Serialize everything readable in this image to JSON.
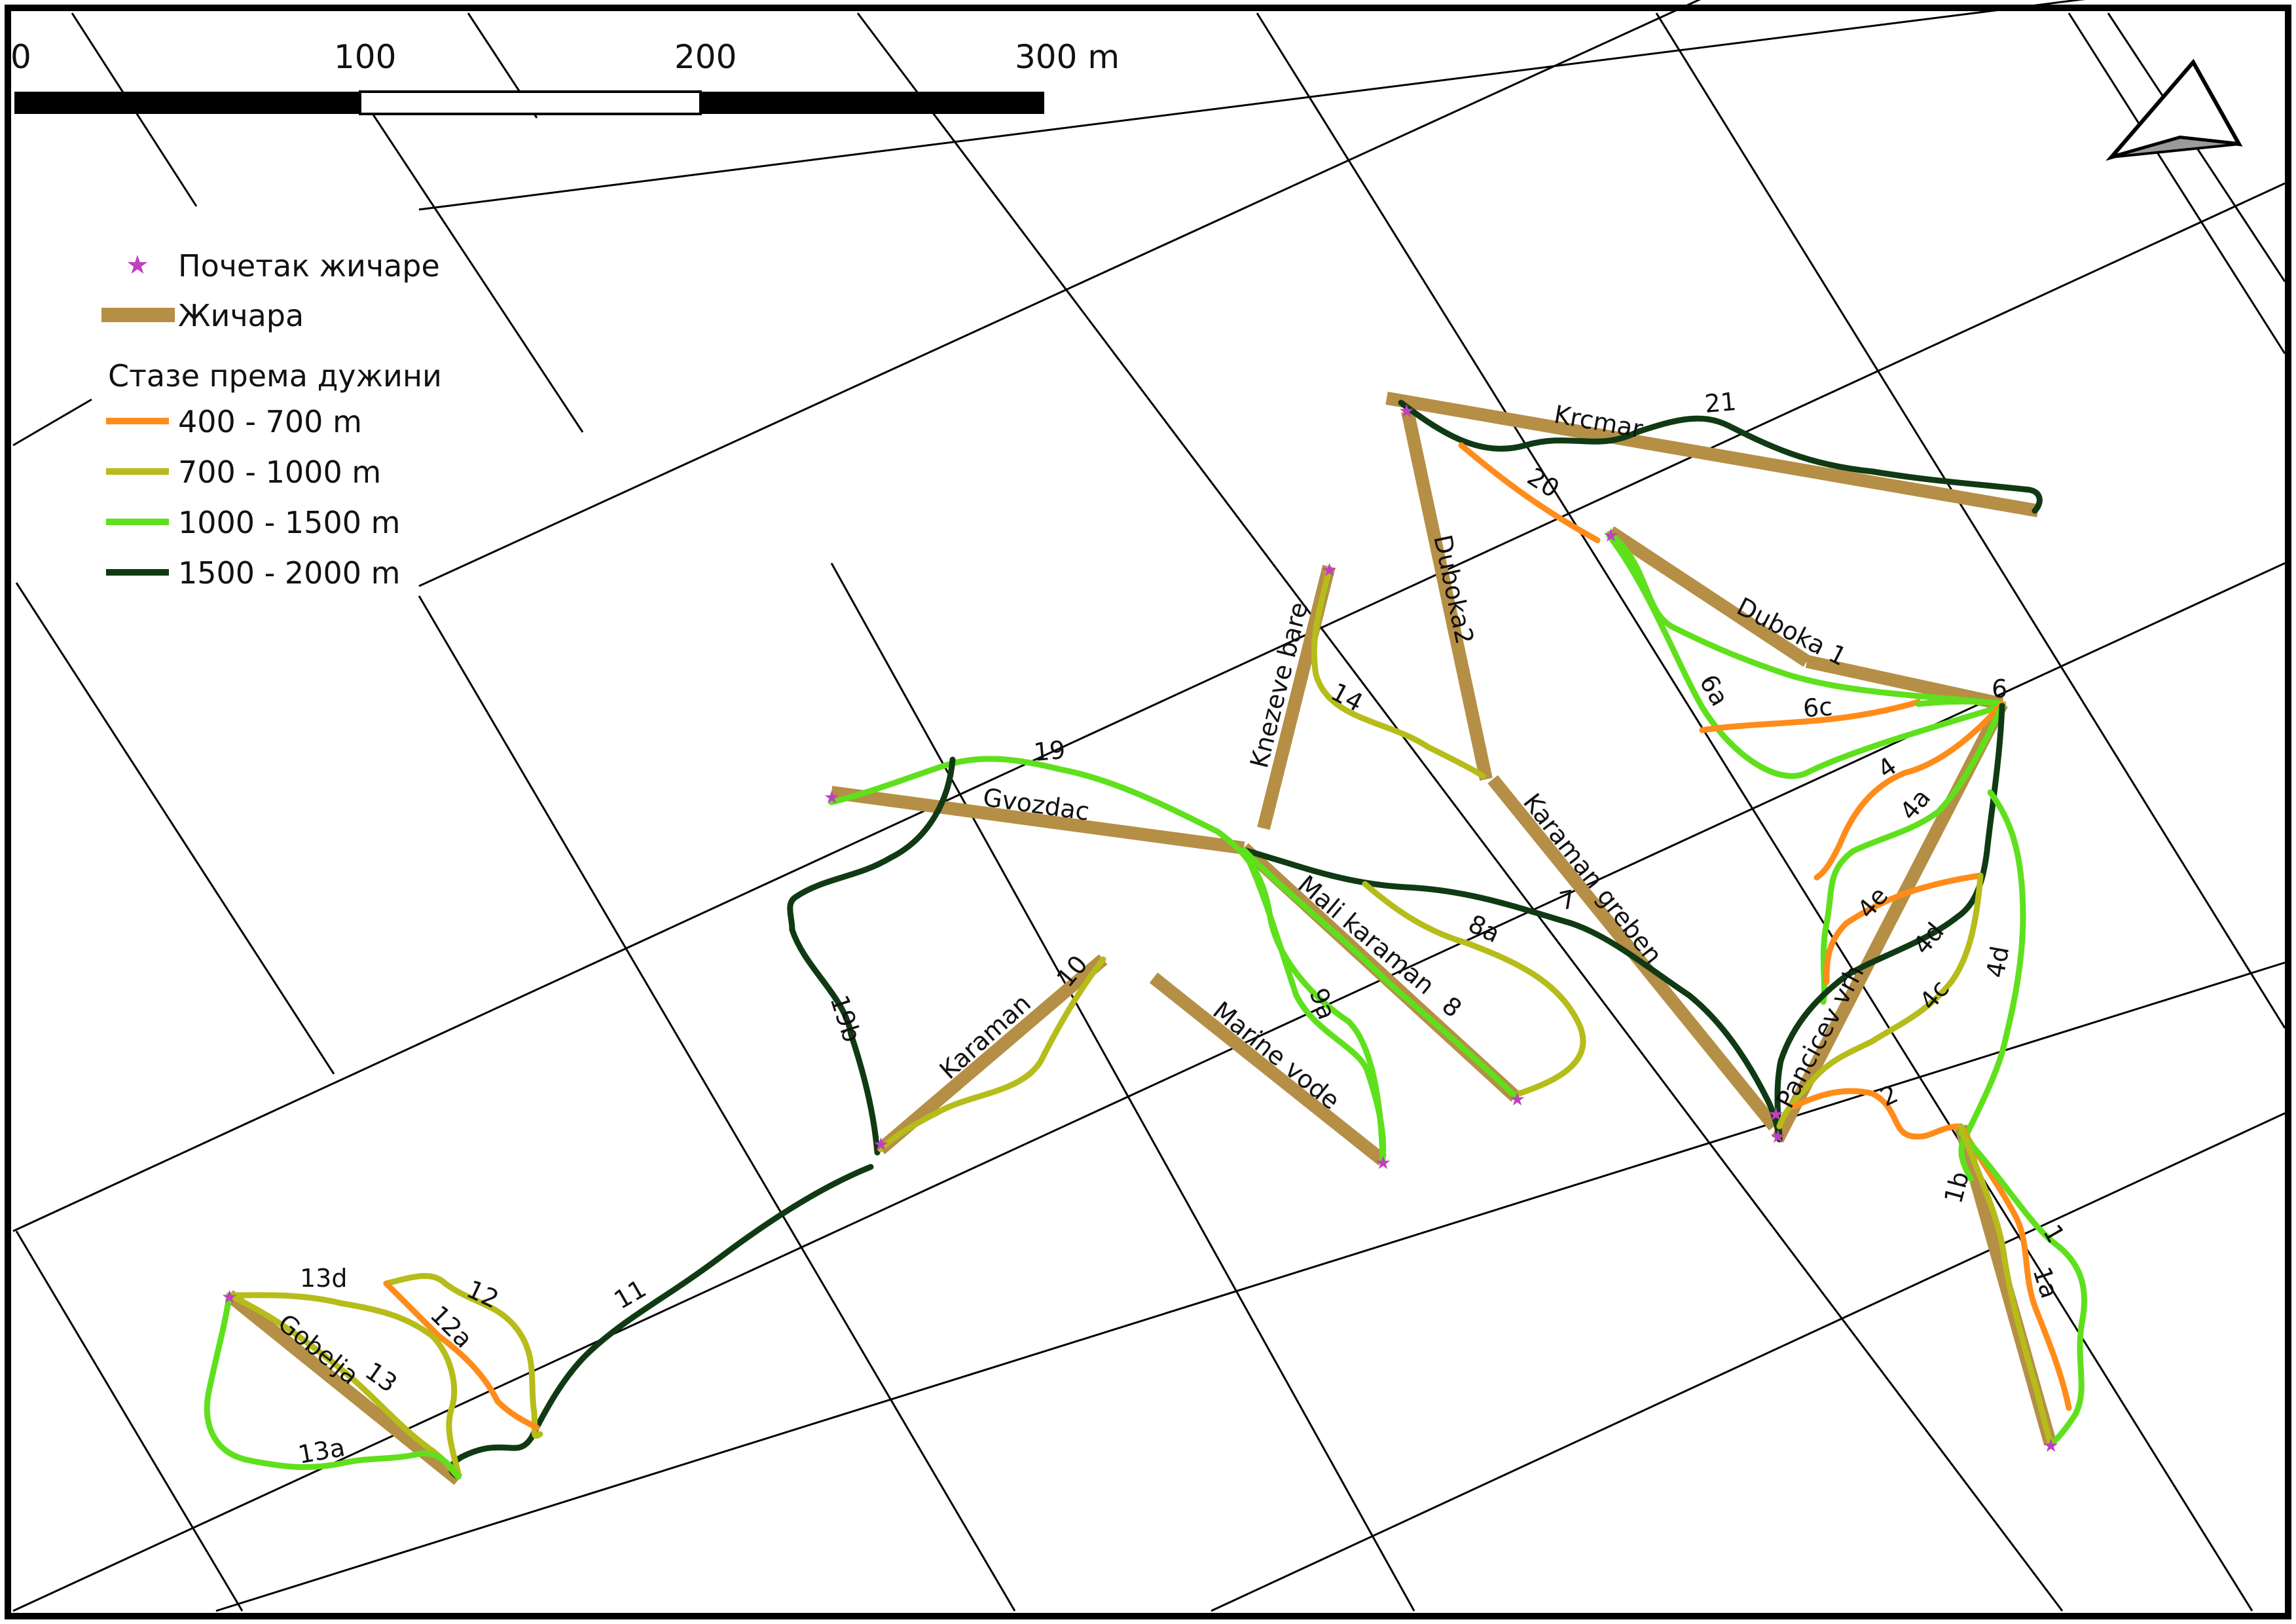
{
  "scale_bar": {
    "labels": [
      "0",
      "100",
      "200",
      "300 m"
    ]
  },
  "north_arrow": {
    "icon": "north-arrow-icon"
  },
  "legend": {
    "lift_start_label": "Почетак жичаре",
    "lift_label": "Жичара",
    "routes_title": "Стазе према дужини",
    "classes": [
      {
        "label": "400 - 700 m",
        "color": "#ff8c1a"
      },
      {
        "label": "700 - 1000 m",
        "color": "#b6bc1a"
      },
      {
        "label": "1000 - 1500 m",
        "color": "#5fe01c"
      },
      {
        "label": "1500 - 2000 m",
        "color": "#0f3a14"
      }
    ],
    "lift_color": "#b58f45",
    "start_color": "#c040c0"
  },
  "lifts": [
    {
      "name": "Krcmar"
    },
    {
      "name": "Duboka2"
    },
    {
      "name": "Duboka 1"
    },
    {
      "name": "Knezeve bare"
    },
    {
      "name": "Gvozdac"
    },
    {
      "name": "Karaman greben"
    },
    {
      "name": "Mali karaman"
    },
    {
      "name": "Marine vode"
    },
    {
      "name": "Karaman"
    },
    {
      "name": "Pancicev vrh"
    },
    {
      "name": "Gobelja"
    },
    {
      "name": "1b"
    }
  ],
  "routes": [
    {
      "name": "21",
      "class": 3
    },
    {
      "name": "20",
      "class": 0
    },
    {
      "name": "6a",
      "class": 2
    },
    {
      "name": "6c",
      "class": 0
    },
    {
      "name": "6",
      "class": 2
    },
    {
      "name": "14",
      "class": 1
    },
    {
      "name": "19",
      "class": 2
    },
    {
      "name": "19b",
      "class": 3
    },
    {
      "name": "7",
      "class": 3
    },
    {
      "name": "8a",
      "class": 1
    },
    {
      "name": "8",
      "class": 2
    },
    {
      "name": "9a",
      "class": 2
    },
    {
      "name": "10",
      "class": 1
    },
    {
      "name": "11",
      "class": 3
    },
    {
      "name": "4",
      "class": 0
    },
    {
      "name": "4a",
      "class": 2
    },
    {
      "name": "4e",
      "class": 0
    },
    {
      "name": "4d",
      "class": 3
    },
    {
      "name": "4c",
      "class": 1
    },
    {
      "name": "4d",
      "class": 2
    },
    {
      "name": "2",
      "class": 0
    },
    {
      "name": "1",
      "class": 0
    },
    {
      "name": "1a",
      "class": 2
    },
    {
      "name": "12",
      "class": 1
    },
    {
      "name": "12a",
      "class": 0
    },
    {
      "name": "13d",
      "class": 1
    },
    {
      "name": "13",
      "class": 1
    },
    {
      "name": "13a",
      "class": 2
    }
  ]
}
